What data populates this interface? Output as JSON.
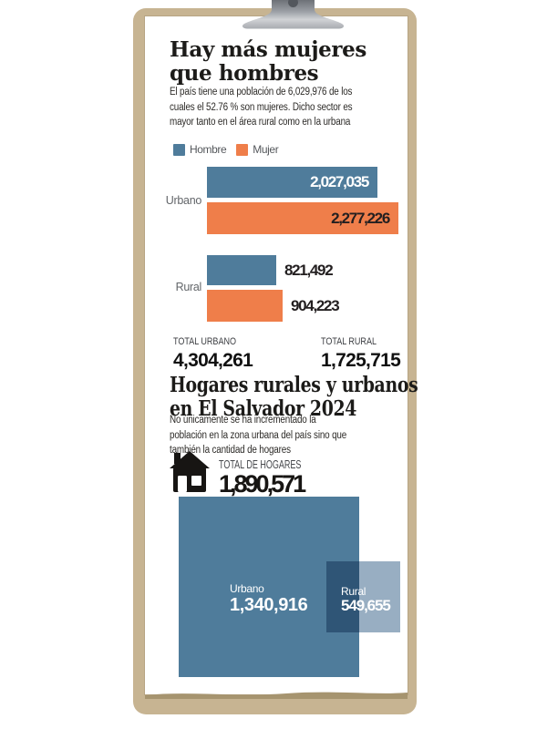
{
  "section1": {
    "title": "Hay más mujeres\nque hombres",
    "description": "El país tiene una población de 6,029,976 de los\ncuales el 52.76 % son mujeres. Dicho sector es\nmayor tanto en el área rural como en la urbana"
  },
  "section2": {
    "title": "Hogares rurales y urbanos\nen El Salvador 2024",
    "description": "No únicamente se ha incrementado la\npoblación en la zona urbana del país sino que\ntambién la cantidad de hogares",
    "icon": "house-icon",
    "total_label": "TOTAL DE HOGARES",
    "total_value": 1890571
  },
  "chart_data": [
    {
      "type": "bar",
      "orientation": "horizontal",
      "title": "Hay más mujeres que hombres",
      "categories": [
        "Urbano",
        "Rural"
      ],
      "series": [
        {
          "name": "Hombre",
          "color": "#4f7c9b",
          "values": [
            2027035,
            821492
          ]
        },
        {
          "name": "Mujer",
          "color": "#ef7e4a",
          "values": [
            2277226,
            904223
          ]
        }
      ],
      "legend_position": "top",
      "value_labels": true,
      "totals": [
        {
          "label": "TOTAL URBANO",
          "value": 4304261
        },
        {
          "label": "TOTAL RURAL",
          "value": 1725715
        }
      ]
    },
    {
      "type": "area",
      "variant": "proportional-squares",
      "title": "Hogares rurales y urbanos en El Salvador 2024",
      "categories": [
        "Urbano",
        "Rural"
      ],
      "values": [
        1340916,
        549655
      ],
      "colors": [
        "#4f7c9b",
        "#98aec2"
      ],
      "overlap_blend": "multiply"
    }
  ],
  "colors": {
    "board": "#c7b492",
    "paper": "#ffffff",
    "paper_shadow": "#a6946f",
    "title_text": "#1c1b19",
    "body_text": "#2e2c29",
    "label_gray": "#63666a",
    "value_dark": "#231f20"
  }
}
